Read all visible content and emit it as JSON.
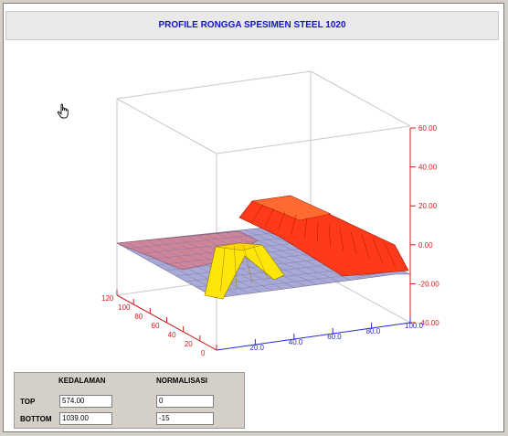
{
  "title": "PROFILE  RONGGA SPESIMEN STEEL 1020",
  "chart_data": {
    "type": "surface",
    "title": "PROFILE  RONGGA SPESIMEN STEEL 1020",
    "z_ticks": [
      "60.00",
      "40.00",
      "20.00",
      "0.00",
      "-20.00",
      "-40.00"
    ],
    "x_ticks": [
      "20.0",
      "40.0",
      "60.0",
      "80.0",
      "100.0"
    ],
    "depth_ticks": [
      "0",
      "20",
      "40",
      "60",
      "80",
      "100",
      "120"
    ],
    "colors": {
      "surface_low": "#d0849a",
      "surface_mid": "#a9a9d8",
      "ridge_high": "#ff3a1a",
      "ridge_mid": "#ffee10",
      "axis_red": "#c81e1e",
      "axis_blue": "#2828d2"
    }
  },
  "panel": {
    "kedalaman_label": "KEDALAMAN",
    "normalisasi_label": "NORMALISASI",
    "top_label": "TOP",
    "bottom_label": "BOTTOM",
    "top_kedalaman": "574.00",
    "bottom_kedalaman": "1039.00",
    "top_normalisasi": "0",
    "bottom_normalisasi": "-15"
  },
  "cursor_icon": "hand-pointer-icon"
}
